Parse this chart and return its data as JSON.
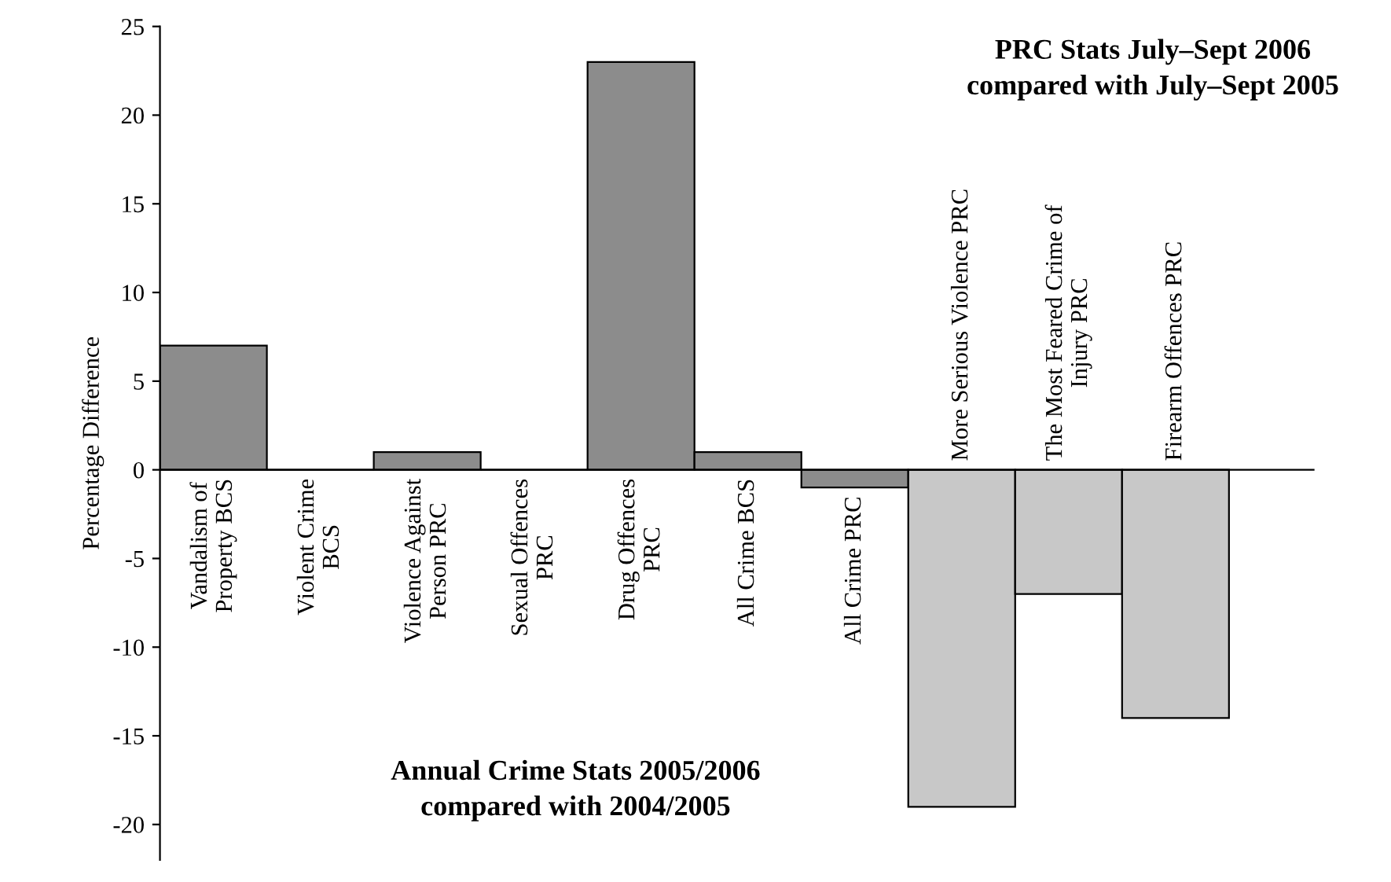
{
  "chart_data": {
    "type": "bar",
    "ylabel": "Percentage Difference",
    "categories": [
      "Vandalism of\nProperty BCS",
      "Violent Crime\nBCS",
      "Violence Against\nPerson PRC",
      "Sexual Offences\nPRC",
      "Drug Offences\nPRC",
      "All Crime BCS",
      "All Crime PRC",
      "More Serious Violence PRC",
      "The Most Feared Crime of\nInjury PRC",
      "Firearm Offences PRC"
    ],
    "series": [
      {
        "color": "#8c8c8c",
        "values": [
          7,
          0,
          1,
          0,
          23,
          1,
          -1,
          null,
          null,
          null
        ]
      },
      {
        "color": "#c8c8c8",
        "values": [
          null,
          null,
          null,
          null,
          null,
          null,
          null,
          -19,
          -7,
          -14
        ]
      }
    ],
    "ylim": [
      -22,
      25
    ],
    "yticks": [
      -20,
      -15,
      -10,
      -5,
      0,
      5,
      10,
      15,
      20,
      25
    ],
    "grid": false,
    "legend": false,
    "annotations": [
      {
        "text": "PRC Stats July–Sept 2006\ncompared with July–Sept 2005"
      },
      {
        "text": "Annual Crime Stats 2005/2006\ncompared with 2004/2005"
      }
    ]
  }
}
